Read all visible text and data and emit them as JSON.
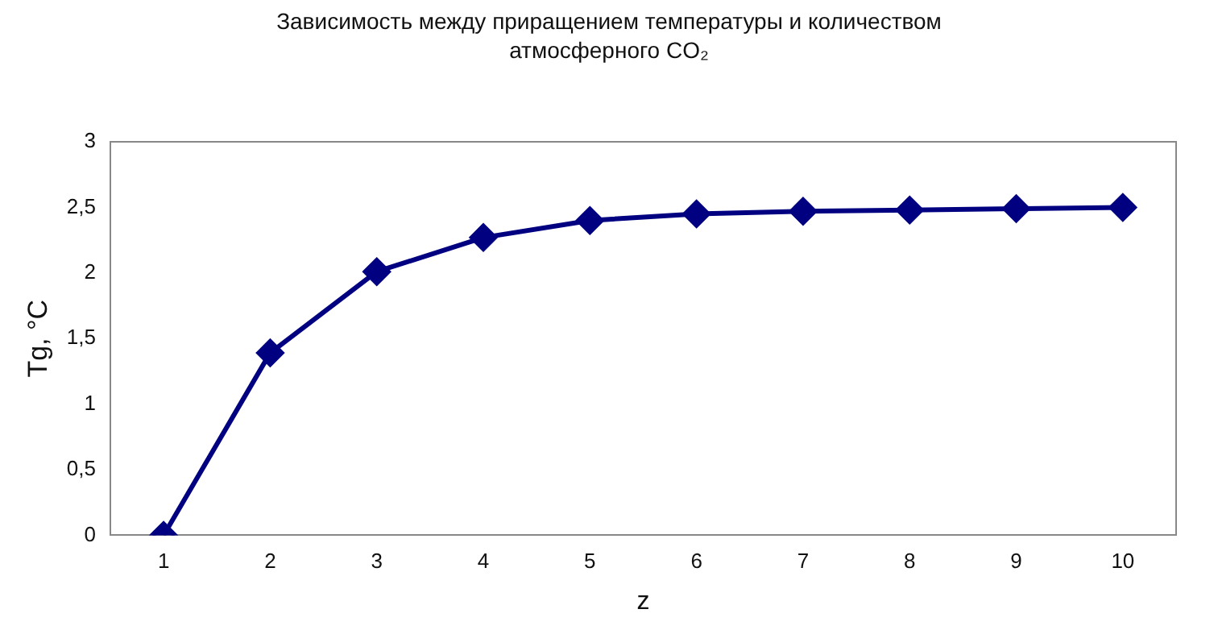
{
  "chart_data": {
    "type": "line",
    "title": "Зависимость между приращением температуры и количеством атмосферного CO₂",
    "xlabel": "z",
    "ylabel": "Tg, °C",
    "categories": [
      "1",
      "2",
      "3",
      "4",
      "5",
      "6",
      "7",
      "8",
      "9",
      "10"
    ],
    "series": [
      {
        "color": "#000080",
        "values": [
          0,
          1.39,
          2.01,
          2.27,
          2.4,
          2.45,
          2.47,
          2.48,
          2.49,
          2.5
        ]
      }
    ],
    "ylim": [
      0,
      3
    ],
    "yticks": [
      0,
      {
        "value": 0.5,
        "label": "0,5"
      },
      1,
      {
        "value": 1.5,
        "label": "1,5"
      },
      2,
      {
        "value": 2.5,
        "label": "2,5"
      },
      3
    ],
    "grid": false,
    "legend": false,
    "marker": "diamond",
    "line_style": "solid"
  }
}
